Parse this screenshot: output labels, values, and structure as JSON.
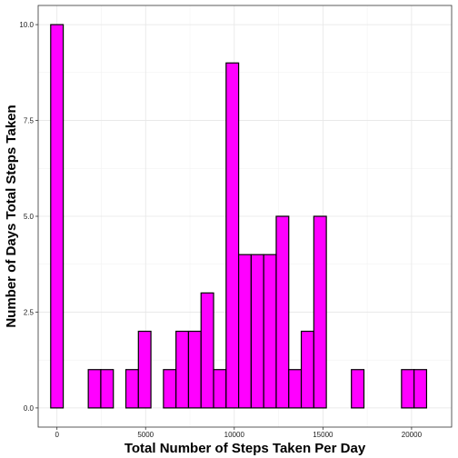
{
  "chart_data": {
    "type": "bar",
    "subtype": "histogram",
    "title": "",
    "xlabel": "Total Number of Steps Taken Per Day",
    "ylabel": "Number of Days Total Steps Taken",
    "bin_width": 706.67,
    "bin_centers": [
      0,
      706.67,
      1413.33,
      2120,
      2826.67,
      3533.33,
      4240,
      4946.67,
      5653.33,
      6360,
      7066.67,
      7773.33,
      8480,
      9186.67,
      9893.33,
      10600,
      11306.67,
      12013.33,
      12720,
      13426.67,
      14133.33,
      14840,
      15546.67,
      16253.33,
      16960,
      17666.67,
      18373.33,
      19080,
      19786.67,
      20493.33,
      21200
    ],
    "values": [
      10,
      0,
      0,
      1,
      1,
      0,
      1,
      2,
      0,
      1,
      2,
      2,
      3,
      1,
      9,
      4,
      4,
      4,
      5,
      1,
      2,
      5,
      0,
      0,
      1,
      0,
      0,
      0,
      1,
      1,
      0
    ],
    "xlim": [
      -1060,
      22260
    ],
    "ylim": [
      -0.5,
      10.5
    ],
    "x_ticks": [
      0,
      5000,
      10000,
      15000,
      20000
    ],
    "x_tick_labels": [
      "0",
      "5000",
      "10000",
      "15000",
      "20000"
    ],
    "y_ticks": [
      0,
      2.5,
      5,
      7.5,
      10
    ],
    "y_tick_labels": [
      "0.0",
      "2.5",
      "5.0",
      "7.5",
      "10.0"
    ],
    "grid": true,
    "bar_fill": "#ff00ff",
    "bar_outline": "#000000"
  }
}
